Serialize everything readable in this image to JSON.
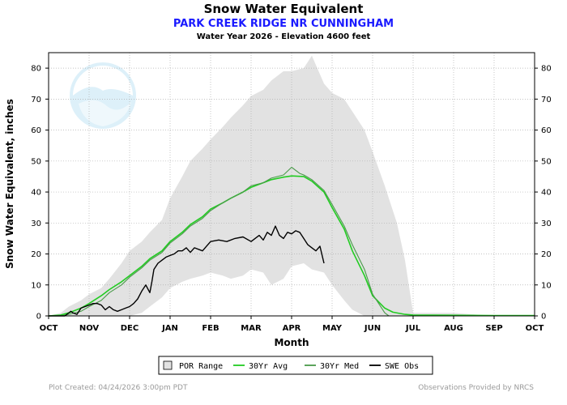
{
  "chart_data": {
    "type": "area",
    "title": "Snow Water Equivalent",
    "subtitle": "PARK CREEK RIDGE NR CUNNINGHAM",
    "subtitle2": "Water Year 2026 -  Elevation 4600 feet",
    "xlabel": "Month",
    "ylabel": "Snow Water Equivalent, inches",
    "categories": [
      "OCT",
      "NOV",
      "DEC",
      "JAN",
      "FEB",
      "MAR",
      "APR",
      "MAY",
      "JUN",
      "JUL",
      "AUG",
      "SEP",
      "OCT"
    ],
    "x_unit": "months since Oct 1",
    "ylim": [
      0,
      85
    ],
    "yticks": [
      "0",
      "10",
      "20",
      "30",
      "40",
      "50",
      "60",
      "70",
      "80"
    ],
    "grid": true,
    "legend_position": "bottom",
    "colors": {
      "por": "#e2e2e2",
      "avg": "#22cc22",
      "med": "#4a9a4a",
      "obs": "#000000"
    },
    "legend": [
      {
        "key": "por",
        "label": "POR Range"
      },
      {
        "key": "avg",
        "label": "30Yr Avg"
      },
      {
        "key": "med",
        "label": "30Yr Med"
      },
      {
        "key": "obs",
        "label": "SWE Obs"
      }
    ],
    "series": [
      {
        "name": "POR Range",
        "key": "por",
        "x": [
          0,
          0.3,
          0.5,
          0.8,
          1.0,
          1.3,
          1.5,
          1.8,
          2.0,
          2.3,
          2.5,
          2.8,
          3.0,
          3.3,
          3.5,
          3.8,
          4.0,
          4.3,
          4.5,
          4.8,
          5.0,
          5.3,
          5.5,
          5.8,
          6.0,
          6.3,
          6.5,
          6.8,
          7.0,
          7.3,
          7.5,
          7.8,
          8.0,
          8.3,
          8.6,
          8.8,
          9.0,
          10.0,
          11.0,
          12.0
        ],
        "high": [
          0,
          1,
          3,
          5,
          7,
          9,
          12,
          17,
          21,
          24,
          27,
          31,
          38,
          45,
          50,
          54,
          57,
          61,
          64,
          68,
          71,
          73,
          76,
          79,
          79,
          80,
          84,
          75,
          72,
          70,
          66,
          60,
          53,
          42,
          30,
          18,
          1,
          1,
          0,
          0
        ],
        "low": [
          0,
          0,
          0,
          0,
          0,
          0,
          0,
          0,
          0,
          1,
          3,
          6,
          9,
          11,
          12,
          13,
          14,
          13,
          12,
          13,
          15,
          14,
          10,
          12,
          16,
          17,
          15,
          14,
          10,
          5,
          2,
          0,
          0,
          0,
          0,
          0,
          0,
          0,
          0,
          0
        ]
      },
      {
        "name": "30Yr Avg",
        "key": "avg",
        "x": [
          0,
          0.3,
          0.5,
          0.8,
          1.0,
          1.3,
          1.5,
          1.8,
          2.0,
          2.3,
          2.5,
          2.8,
          3.0,
          3.3,
          3.5,
          3.8,
          4.0,
          4.3,
          4.5,
          4.8,
          5.0,
          5.3,
          5.5,
          5.8,
          6.0,
          6.3,
          6.5,
          6.8,
          7.0,
          7.3,
          7.5,
          7.8,
          8.0,
          8.3,
          8.5,
          8.8,
          9.0,
          10.0,
          11.0,
          12.0
        ],
        "values": [
          0,
          0.3,
          1,
          2.5,
          4,
          6.5,
          8.5,
          11,
          13,
          16,
          18.5,
          21,
          24,
          27,
          29.5,
          32,
          34.5,
          36.5,
          38,
          40,
          41.5,
          43,
          44,
          44.8,
          45.2,
          45,
          43.5,
          40,
          35,
          28,
          21,
          13,
          6.5,
          2.5,
          1.2,
          0.5,
          0.3,
          0.2,
          0.1,
          0.1
        ]
      },
      {
        "name": "30Yr Med",
        "key": "med",
        "x": [
          0,
          0.3,
          0.5,
          0.8,
          1.0,
          1.3,
          1.5,
          1.8,
          2.0,
          2.3,
          2.5,
          2.8,
          3.0,
          3.3,
          3.5,
          3.8,
          4.0,
          4.3,
          4.5,
          4.8,
          5.0,
          5.3,
          5.5,
          5.8,
          6.0,
          6.2,
          6.3,
          6.5,
          6.8,
          7.0,
          7.3,
          7.5,
          7.8,
          8.0,
          8.3,
          8.4,
          8.5,
          9.0,
          10.0,
          11.0,
          12.0
        ],
        "values": [
          0,
          0,
          0.5,
          1.5,
          3,
          5,
          7.5,
          10,
          12.5,
          15.5,
          18,
          20.5,
          23.5,
          26.5,
          29,
          31.5,
          34,
          36.5,
          38,
          40,
          42,
          43,
          44.5,
          45.5,
          48,
          46,
          45.5,
          44,
          40.5,
          36,
          29,
          23,
          15,
          7,
          1,
          0,
          0,
          0,
          0,
          0,
          0
        ]
      },
      {
        "name": "SWE Obs",
        "key": "obs",
        "x": [
          0,
          0.4,
          0.55,
          0.6,
          0.7,
          0.8,
          0.9,
          1.0,
          1.1,
          1.2,
          1.3,
          1.4,
          1.5,
          1.6,
          1.7,
          1.8,
          1.9,
          2.0,
          2.1,
          2.2,
          2.3,
          2.4,
          2.5,
          2.55,
          2.6,
          2.7,
          2.8,
          2.9,
          3.0,
          3.1,
          3.2,
          3.3,
          3.4,
          3.5,
          3.6,
          3.8,
          4.0,
          4.2,
          4.4,
          4.6,
          4.8,
          5.0,
          5.2,
          5.3,
          5.4,
          5.5,
          5.6,
          5.7,
          5.8,
          5.9,
          6.0,
          6.1,
          6.2,
          6.3,
          6.4,
          6.5,
          6.6,
          6.7,
          6.8
        ],
        "values": [
          0,
          0,
          1.5,
          1,
          0.5,
          2.5,
          3,
          3.5,
          4,
          4,
          3.5,
          2,
          3,
          2,
          1.5,
          2,
          2.5,
          3,
          4,
          5.5,
          8,
          10,
          7.5,
          11,
          15,
          17,
          18,
          19,
          19.5,
          20,
          21,
          21,
          22,
          20.5,
          22,
          21,
          24,
          24.5,
          24,
          25,
          25.5,
          24,
          26,
          24.5,
          27,
          26,
          29,
          26,
          25,
          27,
          26.5,
          27.5,
          27,
          25,
          23,
          22,
          21,
          22.5,
          17
        ]
      }
    ]
  },
  "footer": {
    "created": "Plot Created: 04/24/2026 3:00pm PDT",
    "provider": "Observations Provided by NRCS"
  }
}
